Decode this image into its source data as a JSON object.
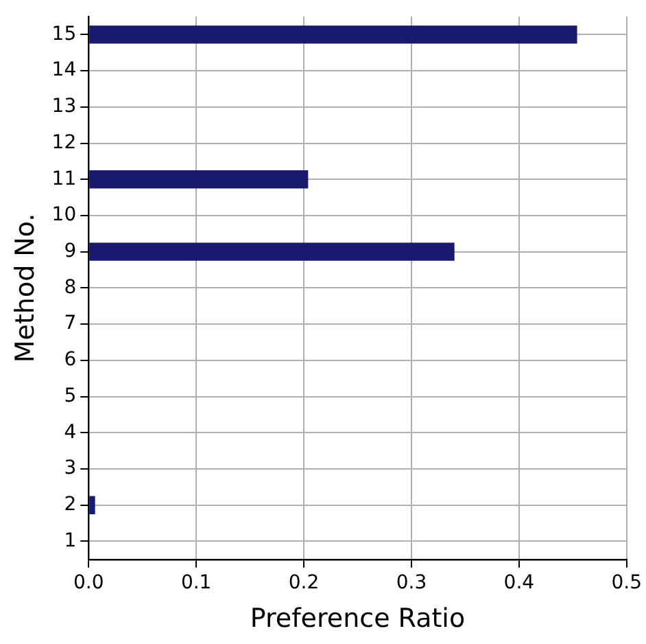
{
  "chart_data": {
    "type": "bar",
    "orientation": "horizontal",
    "xlabel": "Preference Ratio",
    "ylabel": "Method No.",
    "categories": [
      "15",
      "14",
      "13",
      "12",
      "11",
      "10",
      "9",
      "8",
      "7",
      "6",
      "5",
      "4",
      "3",
      "2",
      "1"
    ],
    "values": [
      0.454,
      0,
      0,
      0,
      0.204,
      0,
      0.34,
      0,
      0,
      0,
      0,
      0,
      0,
      0.006,
      0
    ],
    "color": "#191970",
    "xlim": [
      0,
      0.5
    ],
    "xticks": [
      {
        "value": 0,
        "label": "0.0"
      },
      0.1,
      0.2,
      0.3,
      0.4,
      0.5
    ],
    "grid": true,
    "legend": false
  }
}
